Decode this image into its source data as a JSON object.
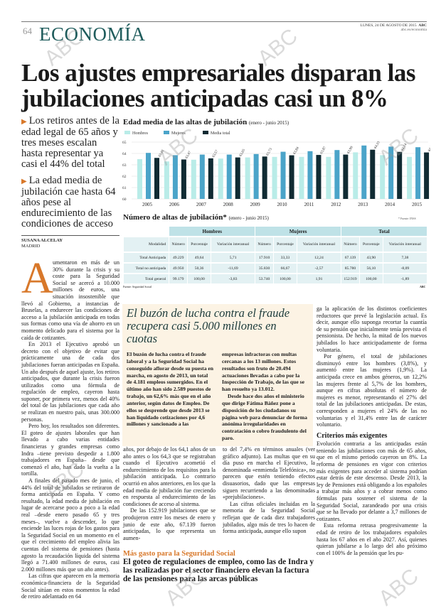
{
  "header": {
    "page_number": "64",
    "section": "ECONOMÍA",
    "date": "LUNES, 24 DE AGOSTO DE 2015",
    "brand": "ABC",
    "url": "abc.es/economia"
  },
  "headline": "Los ajustes empresariales disparan las jubilaciones anticipadas casi un 8%",
  "subheads": [
    "Los retiros antes de la edad legal de 65 años y tres meses escalan hasta representar ya casi el 44% del total",
    "La edad media de jubilación cae hasta 64 años pese al endurecimiento de las condiciones de acceso"
  ],
  "byline": {
    "author": "SUSANA ALCELAY",
    "place": "MADRID"
  },
  "chart_data": {
    "type": "bar",
    "title": "Edad media de las altas de jubilación",
    "subtitle": "(enero - junio 2015)",
    "categories": [
      "2005",
      "2006",
      "2007",
      "2008",
      "2009",
      "2010",
      "2011",
      "2012",
      "2013",
      "2014",
      "2015"
    ],
    "ylim": [
      60,
      65
    ],
    "yticks": [
      "60",
      "61",
      "62",
      "63",
      "64",
      "65"
    ],
    "legend": "top-left",
    "series": [
      {
        "name": "Hombres",
        "color": "#b9ece8",
        "values": [
          63.5,
          63.3,
          63.45,
          63.55,
          63.65,
          63.7,
          63.7,
          63.7,
          64.1,
          63.85,
          63.7
        ]
      },
      {
        "name": "Mujeres",
        "color": "#4ba4c9",
        "values": [
          64.05,
          63.85,
          63.9,
          63.9,
          63.95,
          64.15,
          64.2,
          64.3,
          64.7,
          64.6,
          64.55
        ]
      },
      {
        "name": "Media total",
        "color": "#102b33",
        "values": [
          63.61,
          63.47,
          63.57,
          63.65,
          63.73,
          63.84,
          63.87,
          63.9,
          64.33,
          64.14,
          64.09
        ],
        "labels": [
          "63,61",
          "63,47",
          "63,57",
          "63,65",
          "63,73",
          "63,84",
          "63,87",
          "63,90",
          "64,33",
          "64,14",
          "64,09"
        ]
      }
    ]
  },
  "table": {
    "title": "Número de altas de jubilación*",
    "subtitle": "(enero - junio 2015)",
    "note": "* Fuente: INSS",
    "groups": [
      "Hombres",
      "Mujeres",
      "Total"
    ],
    "row_header": "Modalidad",
    "subheaders": [
      "Número",
      "Porcentaje",
      "Variación interanual"
    ],
    "rows": [
      {
        "label": "Total Anticipada",
        "cells": [
          "49.229",
          "49,64",
          "5,71",
          "17.910",
          "33,33",
          "12,24",
          "67.139",
          "43,90",
          "7,38"
        ]
      },
      {
        "label": "Total no anticipada",
        "cells": [
          "49.950",
          "50,36",
          "-11,69",
          "35.830",
          "66,67",
          "-2,57",
          "85.780",
          "56,10",
          "-8,09"
        ]
      },
      {
        "label": "Total general",
        "cells": [
          "99.179",
          "100,00",
          "-3,83",
          "53.740",
          "100,00",
          "1,91",
          "152.919",
          "100,00",
          "-1,89"
        ]
      }
    ],
    "source": "Fuente: Seguridad Social",
    "credit": "ABC"
  },
  "col1": {
    "drop": "A",
    "paragraphs": [
      "umentaron en más de un 30% durante la crisis y su coste para la Seguridad Social se acercó a 10.000 millones de euros, una situación insostenible que llevó al Gobierno, a instancias de Bruselas, a endurecer las condiciones de acceso a la jubilación anticipada en todas sus formas como una vía de ahorro en un momento delicado para el sistema por la caída de cotizantes.",
      "En 2013 el Ejecutivo aprobó un decreto con el objetivo de evitar que prácticamente una de cada dos jubilaciones fueran anticipadas en España. Un año después de aquel ajuste, los retiros anticipados, que durante la crisis fueron utilizados como una fórmula de regulación de empleo, cayeron hasta suponer, por primera vez, menos del 40% del total de las jubilaciones que cada año se realizan en nuestro país, unas 300.000 personas.",
      "Pero hoy, los resultados son diferentes. El goteo de ajustes laborales que han llevado a cabo varias entidades financieras y grandes empresas como Indra –tiene previsto despedir a 1.800 trabajadores en España– desde que comenzó el año, han dado la vuelta a la tortilla.",
      "A finales del pasado mes de junio, el 44% del total de jubilados se retiraron de forma anticipada en España. Y como resultado, la edad media de jubilación en lugar de acercarse poco a poco a la edad real –desde enero pasado 65 y tres meses–, vuelve a descender, lo que enciende las luces rojas de los gastos para la Seguridad Social en un momento en el que el crecimiento del empleo alivia las cuentas del sistema de pensiones (hasta agosto la recaudación líquida del sistema llegó a 71.400 millones de euros, casi 2.000 millones más que un año antes).",
      "Las cifras que aparecen en la memoria económica-financiera de la Seguridad Social sitúan en estos momentos la edad de retiro adelantado en 64"
    ]
  },
  "box": {
    "title": "El buzón de lucha contra el fraude recupera casi 5.000 millones en cuotas",
    "paragraphs": [
      "El buzón de lucha contra el fraude laboral y a la Seguridad Social ha conseguido aflorar desde su puesta en marcha, en agosto de 2013, un total de 4.181 empleos sumergidos. En el último año han sido 2.589 puestos de trabajo, un 62,6% más que en el año anterior, según datos de Empleo. De ellos se desprende que desde 2013 se han liquidado cotizaciones por 4,6 millones y sancionado a las",
      "empresas infractoras con multas cercanas a los 13 millones. Estos resultados son fruto de 20.494 actuaciones llevadas a cabo por la Inspección de Trabajo, de las que se han resuelto ya 13.012.",
      "Desde hace dos años el ministerio que dirige Fátima Báñez pone a disposición de los ciudadanos su página web para denunciar de forma anónima irregularidades en contratación o cobro fraudulento del paro."
    ]
  },
  "col2": {
    "paragraphs": [
      "años, por debajo de los 64,1 años de un año antes o los 64,3 que se registraban cuando el Ejecutivo acometió el endurecimiento de los requisitos para la jubilación anticipada. Lo contrario ocurrió en años anteriores, en los que la edad media de jubilación fue creciendo en respuesta al endurecimiento de las condiciones de acceso al sistema.",
      "De las 152.919 jubilaciones que se produjeron entre los meses de enero y junio de este año, 67.139 fueron anticipadas, lo que representa un aumen-"
    ]
  },
  "col3": {
    "paragraphs": [
      "to del 7,4% en términos anuales (ver gráfico adjunto). Las multas que en su día puso en marcha el Ejecutivo, la denominada «enmienda Telefónica», no parecen que estén teniendo efectos disuasorios, dado que las empresas siguen recurriendo a las denominadas «prejubilaciones».",
      "Las cifras oficiales incluidas en la memoria de la Seguridad Social reflejan que de cada diez trabajadores jubilados, algo más de tres lo hacen de forma anticipada, aunque ello supon"
    ]
  },
  "col4": {
    "paragraphs": [
      "ga la aplicación de los distintos coeficientes reductores que prevé la legislación actual. Es decir, aunque ello suponga recortar la cuantía de su pensión que inicialmente tenía prevista el pensionista. De hecho, la mitad de los nuevos jubilados lo hace anticipadamente de forma voluntaria.",
      "Por género, el total de jubilaciones disminuyó entre los hombres (3,8%), y aumentó entre las mujeres (1,9%). La anticipada crece en ambos géneros, un 12,2% las mujeres frente al 5,7% de los hombres, aunque en cifras absolutas el número de mujeres es menor, representando el 27% del total de las jubilaciones anticipadas. De estas, corresponden a mujeres el 24% de las no voluntarias y el 31,4% entre las de carácter voluntario."
    ],
    "heading": "Criterios más exigentes",
    "paragraphs2": [
      "Evolución contraria a las anticipadas están teniendo las jubilaciones con más de 65 años, que en el mismo periodo cayeron un 8%. La reforma de pensiones en vigor con criterios más exigentes para acceder al sistema podrían estar detrás de este descenso. Desde 2013, la ley de Pensiones está obligando a los españoles a trabajar más años y a cobrar menos como fórmulas para sostener el sistema de la Seguridad Social, zarandeado por una crisis que se ha llevado por delante a 3,7 millones de cotizantes.",
      "Esta reforma retrasa progresivamente la edad de retiro de los trabajadores españoles hasta los 67 años en el año 2027. Así, quienes quieran jubilarse a lo largo del año próximo con el 100% de la pensión que les pu-"
    ]
  },
  "related": {
    "kicker": "Más gasto para la Seguridad Social",
    "title": "El goteo de regulaciones de empleo, como las de Indra y las realizadas por el sector financiero elevan la factura de las pensiones para las arcas públicas"
  },
  "watermark": "ABC"
}
